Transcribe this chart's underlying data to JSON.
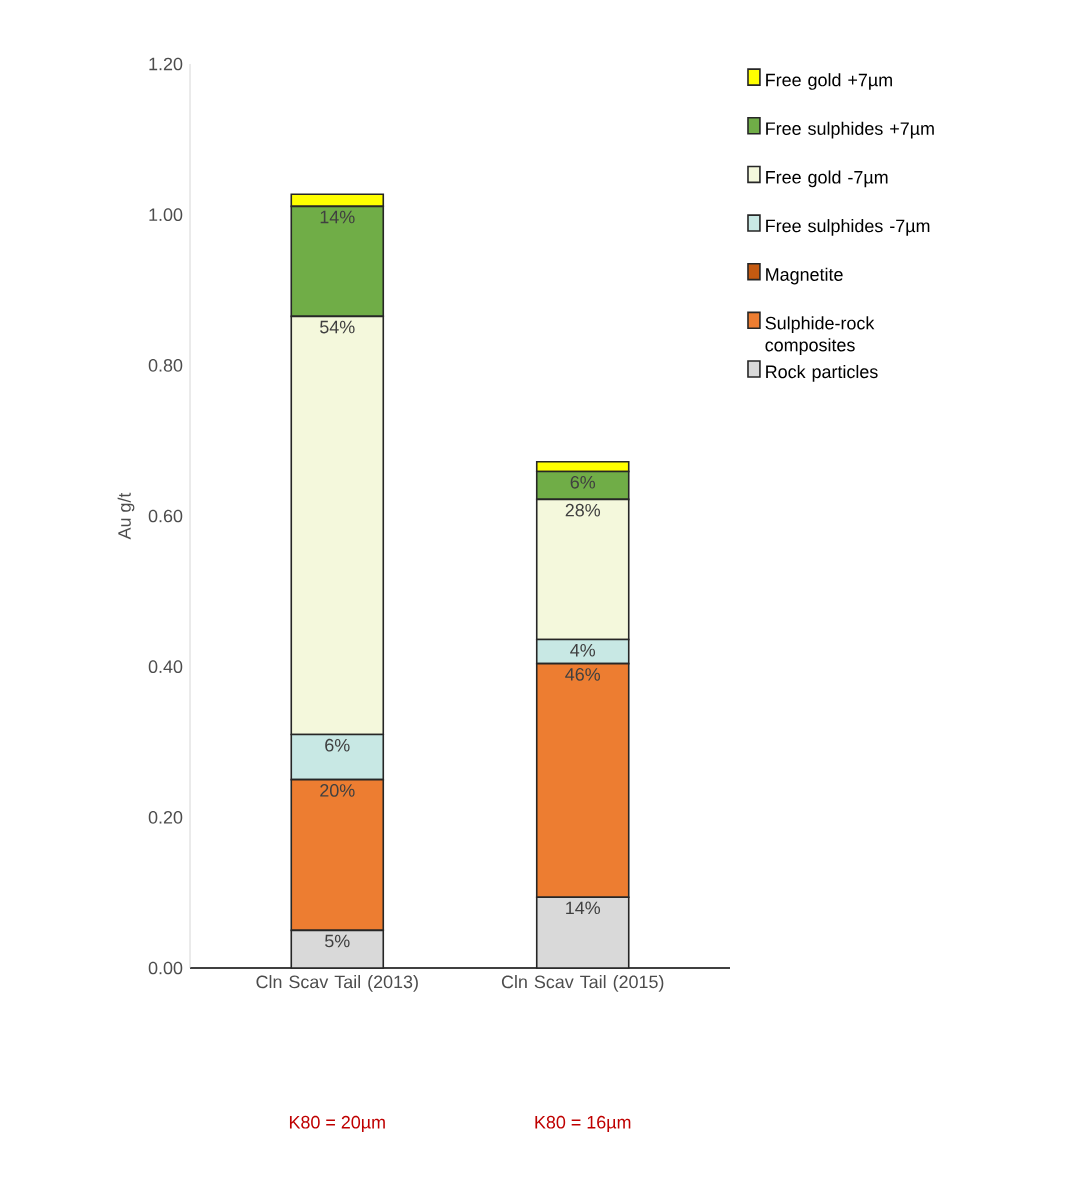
{
  "chart_data": {
    "type": "bar",
    "stacked": true,
    "ylabel": "Au g/t",
    "categories": [
      "Cln Scav Tail (2013)",
      "Cln Scav Tail (2015)"
    ],
    "series": [
      {
        "name": "Rock particles",
        "color": "#d9d9d9",
        "values": [
          0.05,
          0.094
        ]
      },
      {
        "name": "Sulphide-rock composites",
        "color": "#ed7d31",
        "values": [
          0.2,
          0.31
        ]
      },
      {
        "name": "Magnetite",
        "color": "#c55a11",
        "values": [
          0,
          0
        ]
      },
      {
        "name": "Free sulphides -7µm",
        "color": "#c8e8e4",
        "values": [
          0.06,
          0.032
        ]
      },
      {
        "name": "Free gold -7µm",
        "color": "#f4f8dc",
        "values": [
          0.555,
          0.186
        ]
      },
      {
        "name": "Free sulphides +7µm",
        "color": "#70ad47",
        "values": [
          0.146,
          0.037
        ]
      },
      {
        "name": "Free gold +7µm",
        "color": "#ffff00",
        "values": [
          0.016,
          0.013
        ]
      }
    ],
    "ylim": [
      0,
      1.2
    ],
    "yticks": [
      {
        "value": 0,
        "label": "0.00"
      },
      {
        "value": 0.2,
        "label": "0.20"
      },
      {
        "value": 0.4,
        "label": "0.40"
      },
      {
        "value": 0.6,
        "label": "0.60"
      },
      {
        "value": 0.8,
        "label": "0.80"
      },
      {
        "value": 1.0,
        "label": "1.00"
      },
      {
        "value": 1.2,
        "label": "1.20"
      }
    ],
    "grid": false,
    "legend": "right",
    "annotations": [
      {
        "text": "5%",
        "x": "Cln Scav Tail (2013)",
        "y": 0.05
      },
      {
        "text": "20%",
        "x": "Cln Scav Tail (2013)",
        "y": 0.25
      },
      {
        "text": "6%",
        "x": "Cln Scav Tail (2013)",
        "y": 0.31
      },
      {
        "text": "54%",
        "x": "Cln Scav Tail (2013)",
        "y": 0.865
      },
      {
        "text": "14%",
        "x": "Cln Scav Tail (2013)",
        "y": 1.011
      },
      {
        "text": "14%",
        "x": "Cln Scav Tail (2015)",
        "y": 0.094
      },
      {
        "text": "46%",
        "x": "Cln Scav Tail (2015)",
        "y": 0.404
      },
      {
        "text": "4%",
        "x": "Cln Scav Tail (2015)",
        "y": 0.436
      },
      {
        "text": "28%",
        "x": "Cln Scav Tail (2015)",
        "y": 0.622
      },
      {
        "text": "6%",
        "x": "Cln Scav Tail (2015)",
        "y": 0.659
      },
      "K80 = 20µm",
      "K80 = 16µm"
    ]
  }
}
